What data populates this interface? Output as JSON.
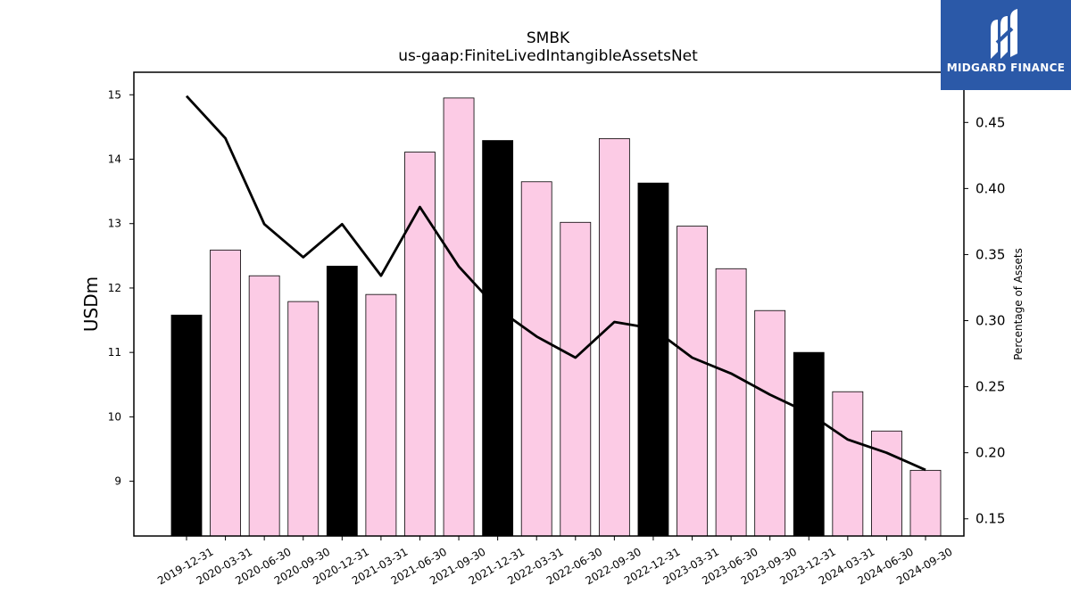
{
  "chart_data": {
    "type": "bar",
    "title": "SMBK",
    "subtitle": "us-gaap:FiniteLivedIntangibleAssetsNet",
    "ylabel": "USDm",
    "ylabel_right": "Percentage of Assets",
    "categories": [
      "2019-12-31",
      "2020-03-31",
      "2020-06-30",
      "2020-09-30",
      "2020-12-31",
      "2021-03-31",
      "2021-06-30",
      "2021-09-30",
      "2021-12-31",
      "2022-03-31",
      "2022-06-30",
      "2022-09-30",
      "2022-12-31",
      "2023-03-31",
      "2023-06-30",
      "2023-09-30",
      "2023-12-31",
      "2024-03-31",
      "2024-06-30",
      "2024-09-30"
    ],
    "series": [
      {
        "type": "bar",
        "axis": "left",
        "values": [
          11.58,
          12.59,
          12.19,
          11.79,
          12.34,
          11.9,
          14.11,
          14.95,
          14.29,
          13.65,
          13.02,
          14.32,
          13.63,
          12.96,
          12.3,
          11.65,
          11.0,
          10.39,
          9.78,
          9.17
        ],
        "highlight": [
          true,
          false,
          false,
          false,
          true,
          false,
          false,
          false,
          true,
          false,
          false,
          false,
          true,
          false,
          false,
          false,
          true,
          false,
          false,
          false
        ]
      },
      {
        "type": "line",
        "axis": "right",
        "values": [
          0.47,
          0.438,
          0.373,
          0.348,
          0.373,
          0.334,
          0.386,
          0.341,
          0.309,
          0.288,
          0.272,
          0.299,
          0.294,
          0.272,
          0.26,
          0.244,
          0.23,
          0.21,
          0.2,
          0.187
        ]
      }
    ],
    "ylim": [
      8.15,
      15.35
    ],
    "y_ticks": [
      "9",
      "10",
      "11",
      "12",
      "13",
      "14",
      "15"
    ],
    "ylim_right": [
      0.137,
      0.488
    ],
    "y_ticks_right": [
      "0.15",
      "0.20",
      "0.25",
      "0.30",
      "0.35",
      "0.40",
      "0.45"
    ],
    "colors": {
      "highlight_bar": "#000000",
      "normal_bar": "#fccbe5",
      "bar_edge": "#000000",
      "line": "#000000"
    },
    "grid": false
  },
  "logo": {
    "text": "MIDGARD FINANCE",
    "background": "#2b59a8"
  }
}
